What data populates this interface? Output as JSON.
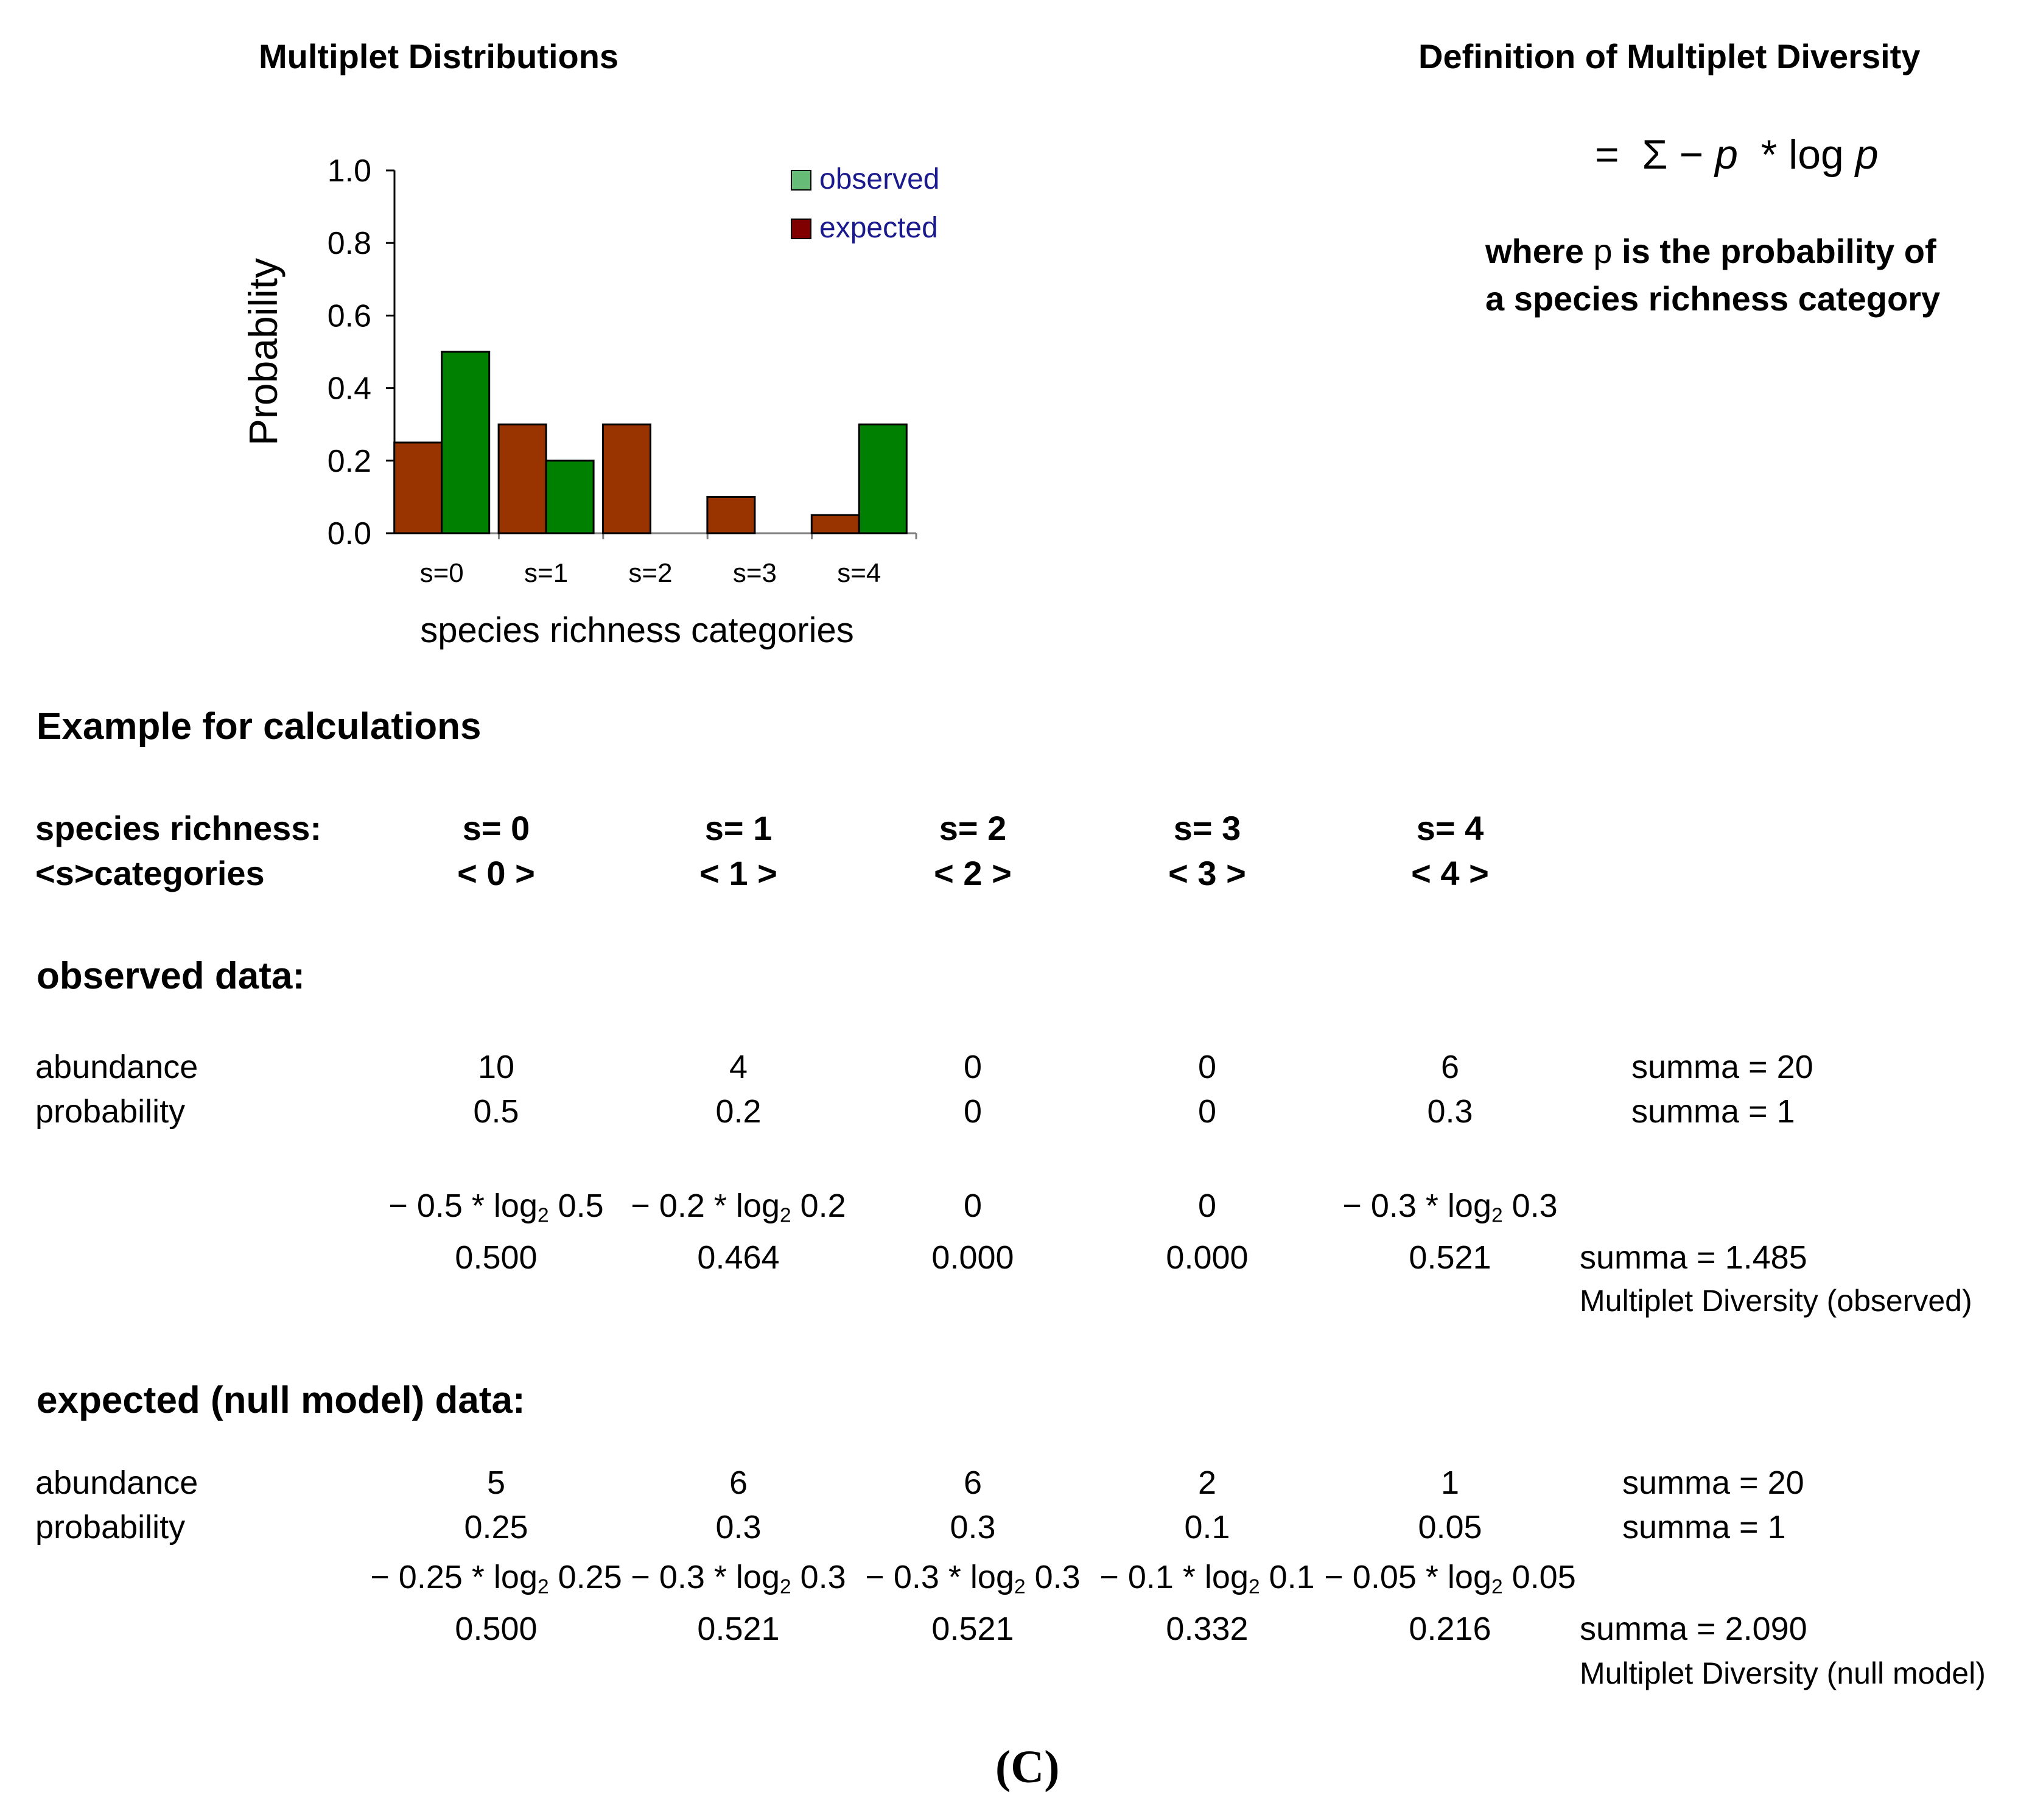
{
  "chart_title": "Multiplet Distributions",
  "definition_title": "Definition of Multiplet Diversity",
  "formula": {
    "equals": "=",
    "sigma": "Σ",
    "minus": "−",
    "p": "p",
    "times": "*",
    "log": "log",
    "p2": "p"
  },
  "definition_text": {
    "line1_where": "where",
    "line1_p": "p",
    "line1_rest": "is the probability of",
    "line2": "a species richness category"
  },
  "chart_data": {
    "type": "bar",
    "categories": [
      "s=0",
      "s=1",
      "s=2",
      "s=3",
      "s=4"
    ],
    "series": [
      {
        "name": "expected",
        "values": [
          0.25,
          0.3,
          0.3,
          0.1,
          0.05
        ],
        "color": "#993300"
      },
      {
        "name": "observed",
        "values": [
          0.5,
          0.2,
          0.0,
          0.0,
          0.3
        ],
        "color": "#008000"
      }
    ],
    "legend": [
      {
        "name": "observed",
        "color": "#66bb77"
      },
      {
        "name": "expected",
        "color": "#800000"
      }
    ],
    "legend_text_color": "#1a1a8c",
    "xlabel": "species richness categories",
    "ylabel": "Probability",
    "ylim": [
      0,
      1
    ],
    "yticks": [
      "0.0",
      "0.2",
      "0.4",
      "0.6",
      "0.8",
      "1.0"
    ],
    "legend_position": "top-right"
  },
  "example_heading": "Example for calculations",
  "species_richness": {
    "label1": "species richness:",
    "label2": "<s>categories",
    "columns": [
      {
        "s": "s= 0",
        "cat": "< 0 >"
      },
      {
        "s": "s= 1",
        "cat": "< 1 >"
      },
      {
        "s": "s= 2",
        "cat": "< 2 >"
      },
      {
        "s": "s= 3",
        "cat": "< 3 >"
      },
      {
        "s": "s= 4",
        "cat": "< 4 >"
      }
    ]
  },
  "observed": {
    "heading": "observed data:",
    "abundance_label": "abundance",
    "probability_label": "probability",
    "abundance": [
      "10",
      "4",
      "0",
      "0",
      "6"
    ],
    "probability": [
      "0.5",
      "0.2",
      "0",
      "0",
      "0.3"
    ],
    "abundance_sum": "summa = 20",
    "probability_sum": "summa =  1",
    "terms": [
      {
        "pre": "− 0.5 * log",
        "sub": "2",
        "post": " 0.5"
      },
      {
        "pre": "− 0.2 * log",
        "sub": "2",
        "post": " 0.2"
      },
      {
        "pre": "0",
        "sub": "",
        "post": ""
      },
      {
        "pre": "0",
        "sub": "",
        "post": ""
      },
      {
        "pre": "− 0.3 * log",
        "sub": "2",
        "post": " 0.3"
      }
    ],
    "values": [
      "0.500",
      "0.464",
      "0.000",
      "0.000",
      "0.521"
    ],
    "summa": "summa = 1.485",
    "diversity_label": "Multiplet Diversity (observed)"
  },
  "expected": {
    "heading": "expected (null model) data:",
    "abundance_label": "abundance",
    "probability_label": "probability",
    "abundance": [
      "5",
      "6",
      "6",
      "2",
      "1"
    ],
    "probability": [
      "0.25",
      "0.3",
      "0.3",
      "0.1",
      "0.05"
    ],
    "abundance_sum": "summa = 20",
    "probability_sum": "summa =  1",
    "terms": [
      {
        "pre": "− 0.25 * log",
        "sub": "2",
        "post": " 0.25"
      },
      {
        "pre": "− 0.3 * log",
        "sub": "2",
        "post": " 0.3"
      },
      {
        "pre": "− 0.3 * log",
        "sub": "2",
        "post": " 0.3"
      },
      {
        "pre": "− 0.1 * log",
        "sub": "2",
        "post": " 0.1"
      },
      {
        "pre": "− 0.05 * log",
        "sub": "2",
        "post": " 0.05"
      }
    ],
    "values": [
      "0.500",
      "0.521",
      "0.521",
      "0.332",
      "0.216"
    ],
    "summa": "summa = 2.090",
    "diversity_label": "Multiplet Diversity (null model)"
  },
  "panel_label": "(C)"
}
